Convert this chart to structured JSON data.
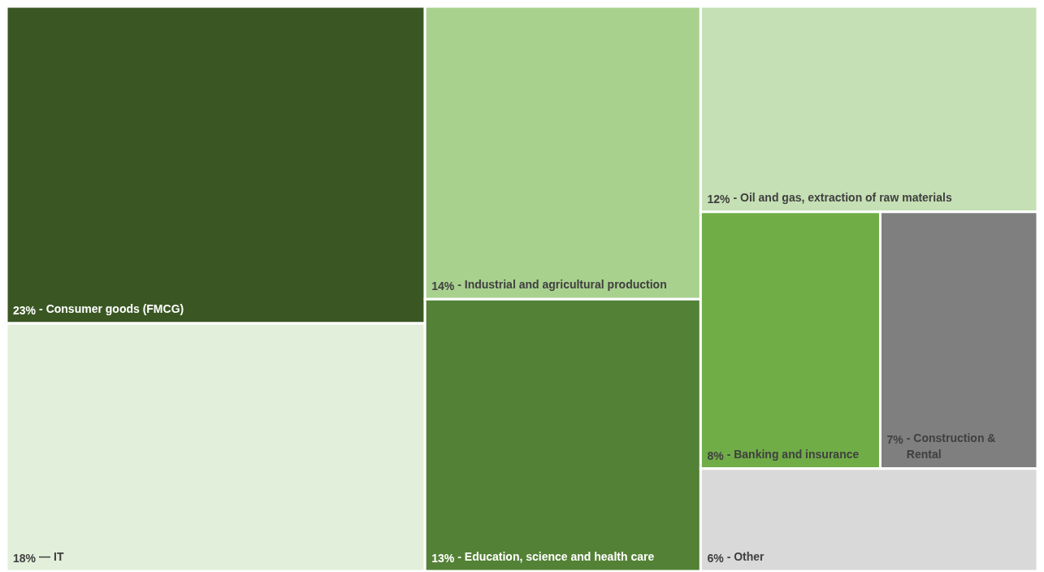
{
  "chart_data": {
    "type": "other",
    "categories": [
      "- Consumer goods (FMCG)",
      "— IT",
      "- Industrial and agricultural production",
      "- Education, science and health care",
      "- Oil and gas, extraction of raw materials",
      "- Banking and insurance",
      "- Construction & Rental",
      "- Other"
    ],
    "value_labels": [
      "23%",
      "18%",
      "14%",
      "13%",
      "12%",
      "8%",
      "7%",
      "6%"
    ],
    "values": [
      23,
      18,
      14,
      13,
      12,
      8,
      7,
      6
    ],
    "colors": [
      "#3a5723",
      "#e2efda",
      "#a9d18e",
      "#538135",
      "#c5e0b4",
      "#70ad47",
      "#7f7f7f",
      "#d9d9d9"
    ]
  }
}
